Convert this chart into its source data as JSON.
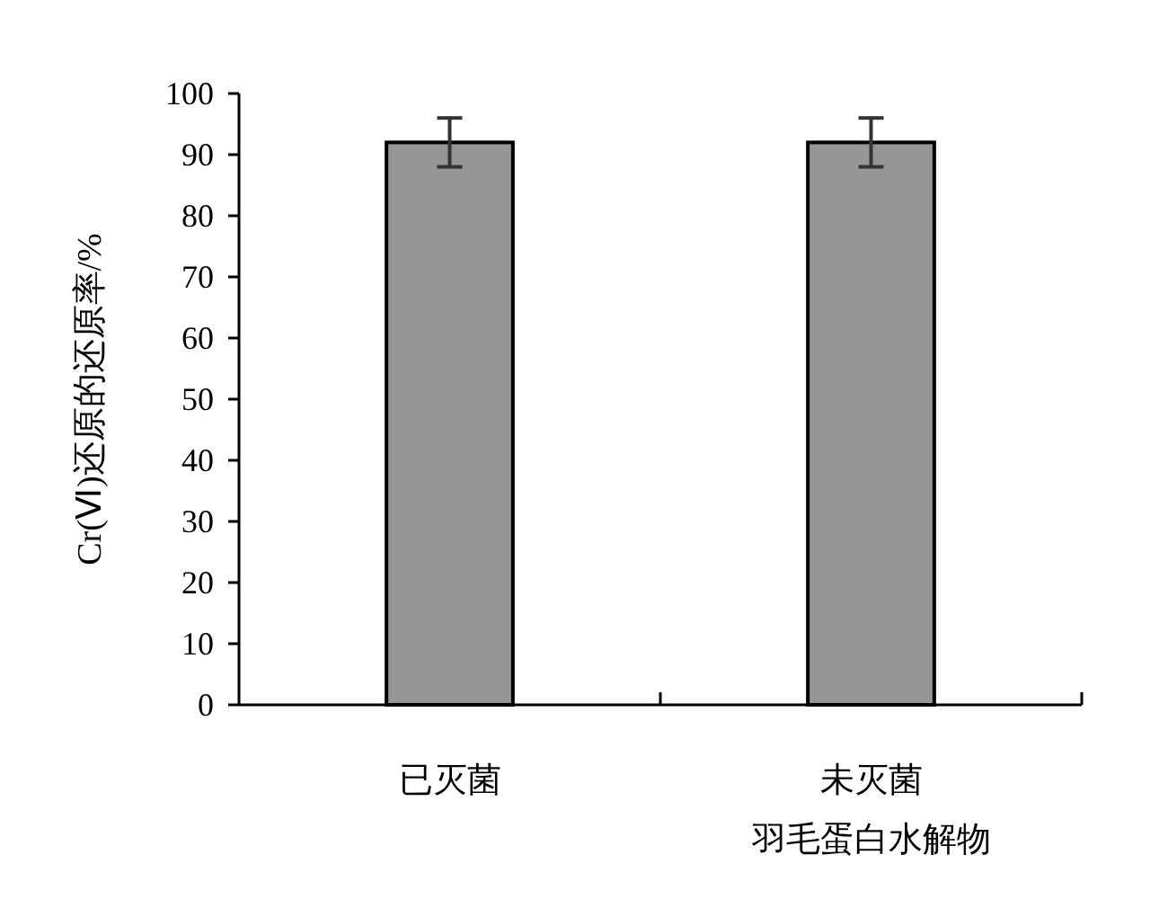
{
  "chart_data": {
    "type": "bar",
    "ylabel": "Cr(Ⅵ)还原的还原率/%",
    "categories": [
      "已灭菌",
      "未灭菌"
    ],
    "annotations": [
      "羽毛蛋白水解物"
    ],
    "values": [
      92,
      92
    ],
    "errors": [
      4,
      4
    ],
    "color": "#969696",
    "ylim": [
      0,
      100
    ],
    "yticks": [
      0,
      10,
      20,
      30,
      40,
      50,
      60,
      70,
      80,
      90,
      100
    ]
  }
}
